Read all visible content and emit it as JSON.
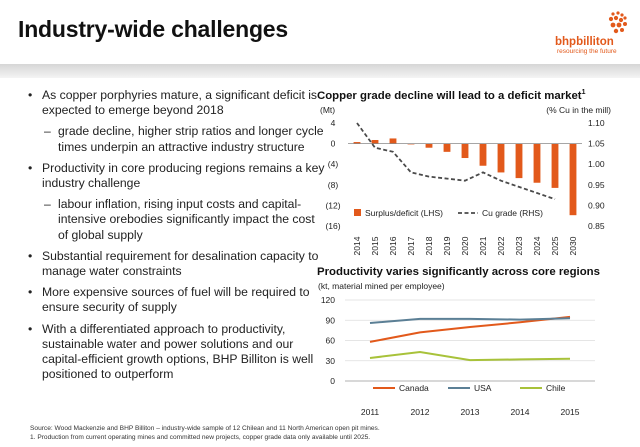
{
  "title": "Industry-wide challenges",
  "logo": {
    "name": "bhpbilliton",
    "tagline": "resourcing the future",
    "color": "#e2591b"
  },
  "bullets": [
    {
      "level": 1,
      "text": "As copper porphyries mature, a significant deficit is expected to emerge beyond 2018"
    },
    {
      "level": 2,
      "text": "grade decline, higher strip ratios and longer cycle times underpin an attractive industry structure"
    },
    {
      "level": 1,
      "text": "Productivity in core producing regions remains a key industry challenge"
    },
    {
      "level": 2,
      "text": "labour inflation, rising input costs and capital-intensive orebodies significantly impact the cost of global supply"
    },
    {
      "level": 1,
      "text": "Substantial requirement for desalination capacity to manage water constraints"
    },
    {
      "level": 1,
      "text": "More expensive sources of fuel will be required to ensure security of supply"
    },
    {
      "level": 1,
      "text": "With a differentiated approach to productivity, sustainable water and power solutions and our capital-efficient growth options, BHP Billiton is well positioned to outperform"
    }
  ],
  "chart_data": [
    {
      "type": "bar",
      "title": "Copper grade decline will lead to a deficit market",
      "title_footnote": "1",
      "left_unit": "(Mt)",
      "right_unit": "(% Cu in the mill)",
      "categories": [
        "2014",
        "2015",
        "2016",
        "2017",
        "2018",
        "2019",
        "2020",
        "2021",
        "2022",
        "2023",
        "2024",
        "2025",
        "2030"
      ],
      "series": [
        {
          "name": "Surplus/deficit (LHS)",
          "type": "bar",
          "axis": "left",
          "color": "#e2591b",
          "values": [
            0.3,
            0.7,
            1.0,
            -0.1,
            -0.8,
            -1.6,
            -2.8,
            -4.3,
            -5.6,
            -6.7,
            -7.6,
            -8.6,
            -13.9
          ]
        },
        {
          "name": "Cu grade (RHS)",
          "type": "line",
          "axis": "right",
          "style": "dashed",
          "color": "#4a4a4a",
          "values": [
            1.1,
            1.04,
            1.03,
            0.98,
            0.97,
            0.965,
            0.96,
            0.98,
            0.96,
            0.945,
            0.93,
            0.915,
            null
          ]
        }
      ],
      "ylim_left": [
        -16,
        4
      ],
      "yticks_left": [
        "4",
        "0",
        "(4)",
        "(8)",
        "(12)",
        "(16)"
      ],
      "ylim_right": [
        0.85,
        1.1
      ],
      "yticks_right": [
        "1.10",
        "1.05",
        "1.00",
        "0.95",
        "0.90",
        "0.85"
      ],
      "legend": "bottom"
    },
    {
      "type": "line",
      "title": "Productivity varies significantly across core regions",
      "ylabel": "(kt, material mined per employee)",
      "categories": [
        "2011",
        "2012",
        "2013",
        "2014",
        "2015"
      ],
      "series": [
        {
          "name": "Canada",
          "color": "#e2591b",
          "values": [
            58,
            72,
            80,
            87,
            95
          ]
        },
        {
          "name": "USA",
          "color": "#5b7f95",
          "values": [
            86,
            92,
            92,
            91,
            93
          ]
        },
        {
          "name": "Chile",
          "color": "#a8c23a",
          "values": [
            34,
            43,
            31,
            32,
            33
          ]
        }
      ],
      "ylim": [
        0,
        120
      ],
      "yticks": [
        "0",
        "30",
        "60",
        "90",
        "120"
      ],
      "grid": true,
      "legend": "bottom"
    }
  ],
  "footer": {
    "source": "Source:  Wood Mackenzie and BHP Billiton – industry-wide sample of 12 Chilean and 11 North American open pit mines.",
    "note": "1.  Production from current operating mines and committed new projects, copper grade data only available until 2025."
  }
}
